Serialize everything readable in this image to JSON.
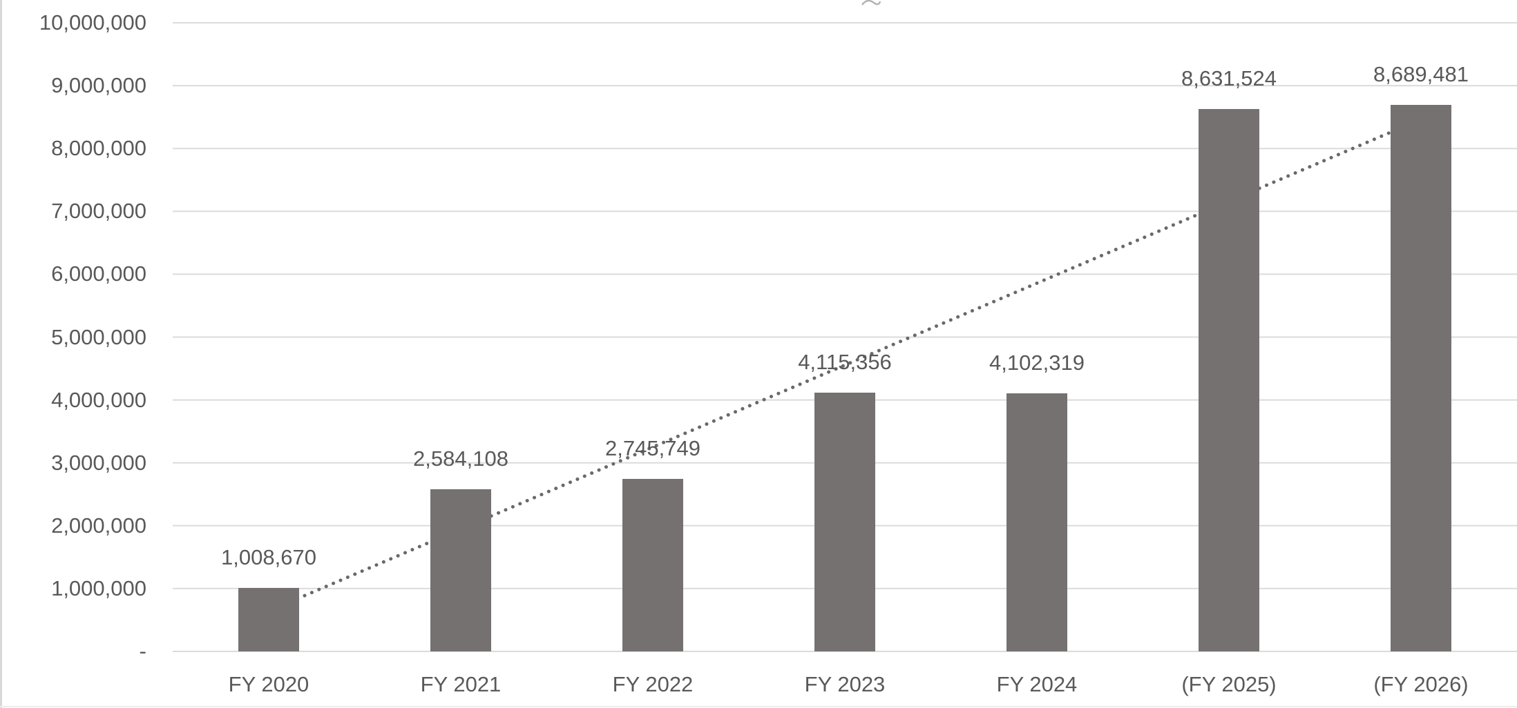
{
  "chart_data": {
    "type": "bar",
    "title": "",
    "categories": [
      "FY 2020",
      "FY 2021",
      "FY 2022",
      "FY 2023",
      "FY 2024",
      "(FY 2025)",
      "(FY 2026)"
    ],
    "values": [
      1008670,
      2584108,
      2745749,
      4115356,
      4102319,
      8631524,
      8689481
    ],
    "data_labels": [
      "1,008,670",
      "2,584,108",
      "2,745,749",
      "4,115,356",
      "4,102,319",
      "8,631,524",
      "8,689,481"
    ],
    "xlabel": "",
    "ylabel": "",
    "ylim": [
      0,
      10000000
    ],
    "grid": true,
    "legend": "none",
    "y_ticks": [
      {
        "label": "10,000,000",
        "value": 10000000
      },
      {
        "label": "9,000,000",
        "value": 9000000
      },
      {
        "label": "8,000,000",
        "value": 8000000
      },
      {
        "label": "7,000,000",
        "value": 7000000
      },
      {
        "label": "6,000,000",
        "value": 6000000
      },
      {
        "label": "5,000,000",
        "value": 5000000
      },
      {
        "label": "4,000,000",
        "value": 4000000
      },
      {
        "label": "3,000,000",
        "value": 3000000
      },
      {
        "label": "2,000,000",
        "value": 2000000
      },
      {
        "label": "1,000,000",
        "value": 1000000
      },
      {
        "label": "-",
        "value": 0
      }
    ],
    "trendline": {
      "type": "linear",
      "style": "dotted",
      "start_value": 644000,
      "end_value": 8464000
    },
    "colors": {
      "bar": "#767171",
      "text": "#595959",
      "gridline": "#dbdbdb",
      "trendline": "#696969",
      "edge_border": "#d8d8d8"
    }
  }
}
